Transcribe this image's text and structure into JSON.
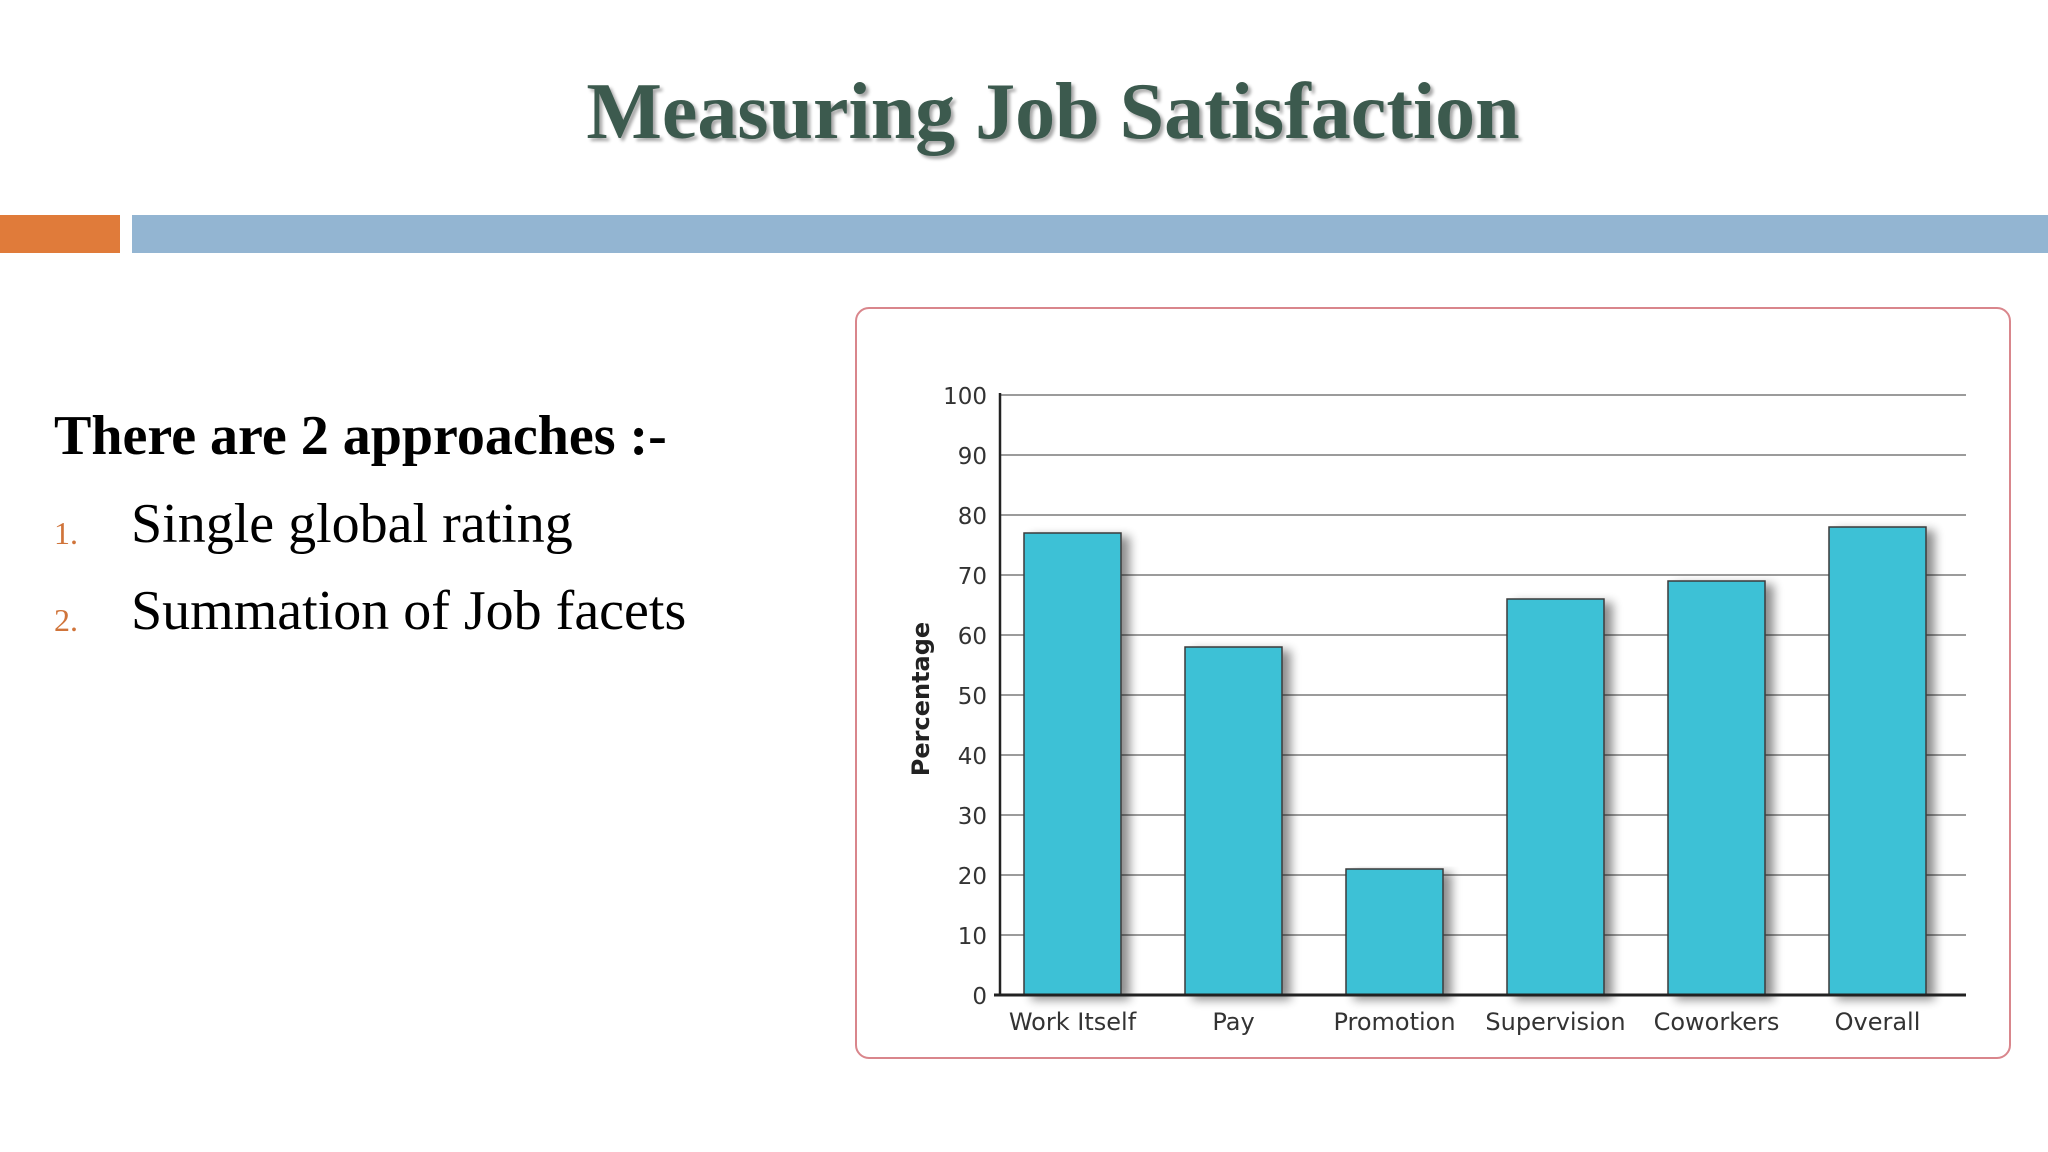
{
  "slide": {
    "title": "Measuring Job Satisfaction",
    "intro": "There are 2 approaches :-",
    "items": [
      {
        "num": "1.",
        "text": "Single global rating"
      },
      {
        "num": "2.",
        "text": "Summation of Job facets"
      }
    ]
  },
  "colors": {
    "title": "#3c5a4e",
    "accent_orange": "#e07b3a",
    "accent_blue": "#93b5d2",
    "bar_fill": "#3ec1d6",
    "chart_border": "#d9868c"
  },
  "chart_data": {
    "type": "bar",
    "categories": [
      "Work Itself",
      "Pay",
      "Promotion",
      "Supervision",
      "Coworkers",
      "Overall"
    ],
    "values": [
      77,
      58,
      21,
      66,
      69,
      78
    ],
    "title": "",
    "xlabel": "",
    "ylabel": "Percentage",
    "ylim": [
      0,
      100
    ],
    "yticks": [
      0,
      10,
      20,
      30,
      40,
      50,
      60,
      70,
      80,
      90,
      100
    ],
    "grid": true,
    "legend": "none"
  }
}
